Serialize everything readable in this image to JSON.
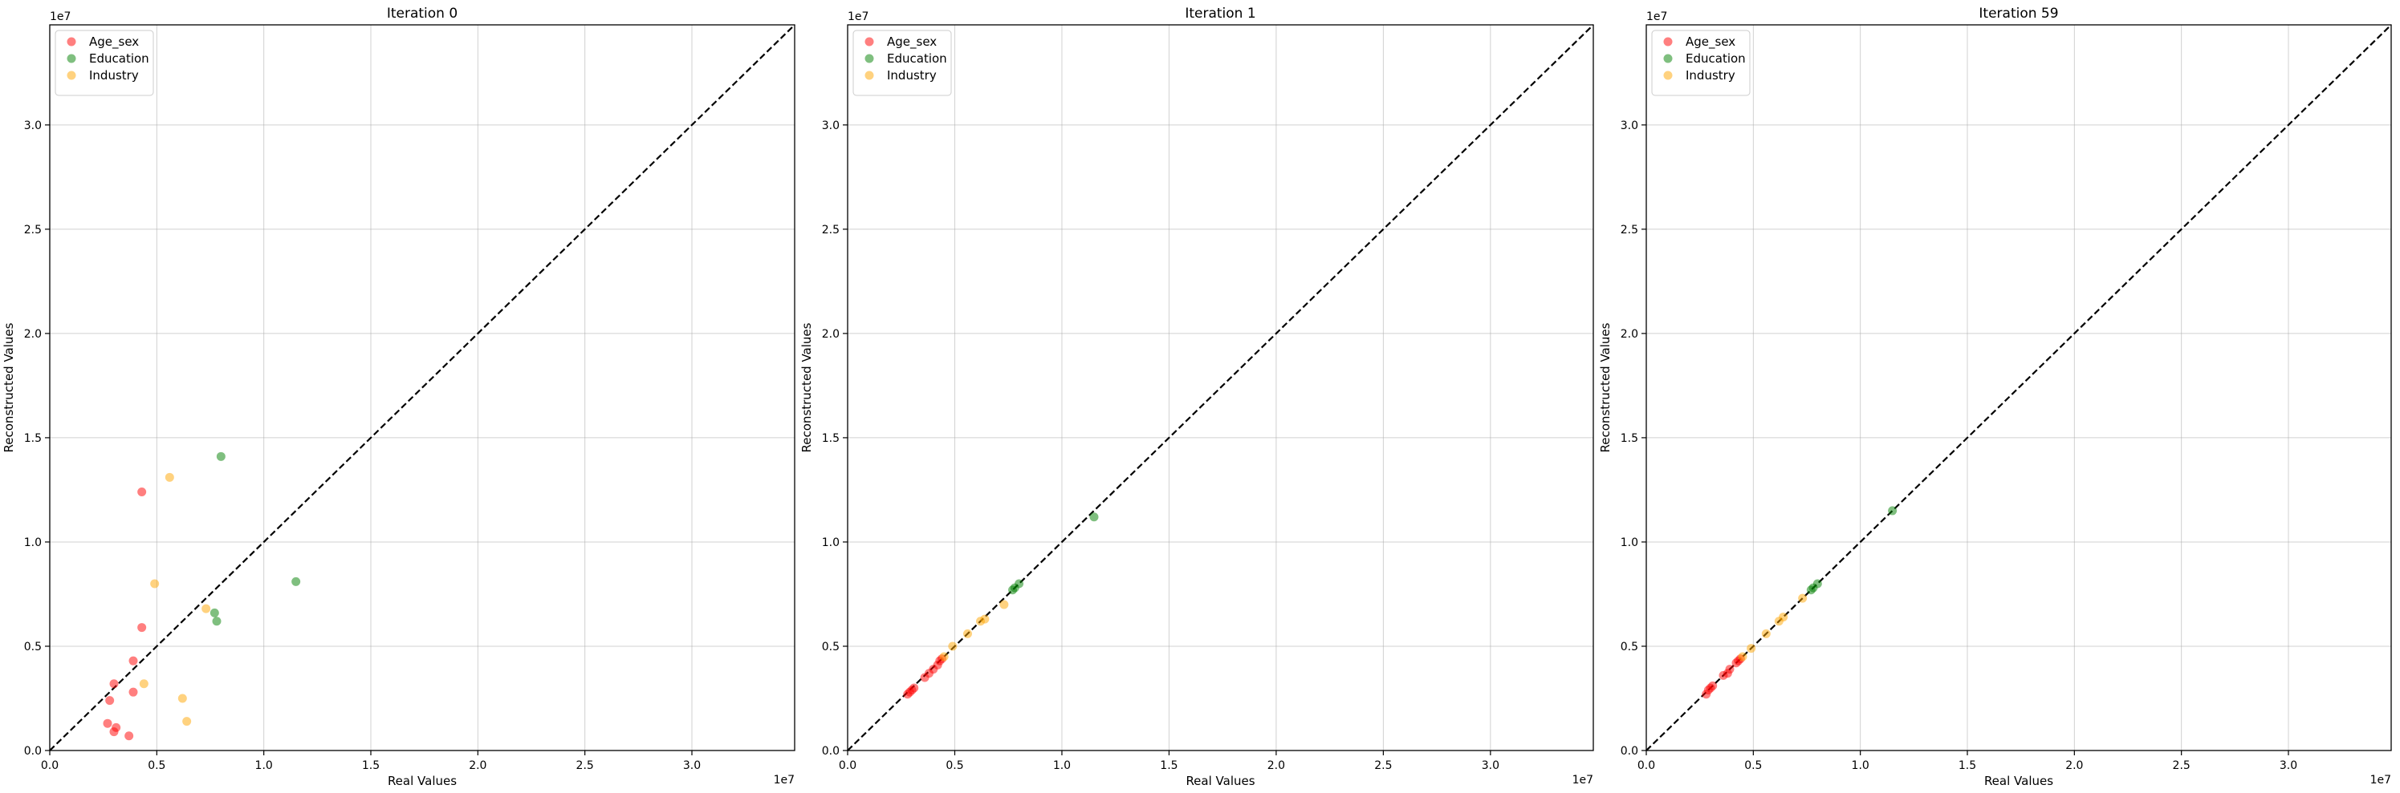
{
  "chart_data": [
    {
      "type": "scatter",
      "title": "Iteration 0",
      "xlabel": "Real Values",
      "ylabel": "Reconstructed Values",
      "x_offset_label": "1e7",
      "y_offset_label": "1e7",
      "xlim": [
        0,
        34800000
      ],
      "ylim": [
        0,
        34800000
      ],
      "x_ticks": [
        0,
        5000000,
        10000000,
        15000000,
        20000000,
        25000000,
        30000000
      ],
      "y_ticks": [
        0,
        5000000,
        10000000,
        15000000,
        20000000,
        25000000,
        30000000
      ],
      "x_tick_labels": [
        "0.0",
        "0.5",
        "1.0",
        "1.5",
        "2.0",
        "2.5",
        "3.0"
      ],
      "y_tick_labels": [
        "0.0",
        "0.5",
        "1.0",
        "1.5",
        "2.0",
        "2.5",
        "3.0"
      ],
      "grid": true,
      "legend_position": "top-left",
      "reference_line": "y = x",
      "series": [
        {
          "name": "Age_sex",
          "color": "#ff0000",
          "points": [
            [
              4300000,
              12400000
            ],
            [
              4300000,
              5900000
            ],
            [
              3900000,
              4300000
            ],
            [
              3000000,
              3200000
            ],
            [
              3900000,
              2800000
            ],
            [
              2800000,
              2400000
            ],
            [
              2700000,
              1300000
            ],
            [
              3100000,
              1100000
            ],
            [
              3000000,
              900000
            ],
            [
              3700000,
              700000
            ]
          ]
        },
        {
          "name": "Education",
          "color": "#008000",
          "points": [
            [
              8000000,
              14100000
            ],
            [
              11500000,
              8100000
            ],
            [
              7700000,
              6600000
            ],
            [
              7800000,
              6200000
            ]
          ]
        },
        {
          "name": "Industry",
          "color": "#ffa500",
          "points": [
            [
              5600000,
              13100000
            ],
            [
              4900000,
              8000000
            ],
            [
              7300000,
              6800000
            ],
            [
              4400000,
              3200000
            ],
            [
              6200000,
              2500000
            ],
            [
              6400000,
              1400000
            ]
          ]
        }
      ]
    },
    {
      "type": "scatter",
      "title": "Iteration 1",
      "xlabel": "Real Values",
      "ylabel": "Reconstructed Values",
      "x_offset_label": "1e7",
      "y_offset_label": "1e7",
      "xlim": [
        0,
        34800000
      ],
      "ylim": [
        0,
        34800000
      ],
      "x_ticks": [
        0,
        5000000,
        10000000,
        15000000,
        20000000,
        25000000,
        30000000
      ],
      "y_ticks": [
        0,
        5000000,
        10000000,
        15000000,
        20000000,
        25000000,
        30000000
      ],
      "x_tick_labels": [
        "0.0",
        "0.5",
        "1.0",
        "1.5",
        "2.0",
        "2.5",
        "3.0"
      ],
      "y_tick_labels": [
        "0.0",
        "0.5",
        "1.0",
        "1.5",
        "2.0",
        "2.5",
        "3.0"
      ],
      "grid": true,
      "legend_position": "top-left",
      "reference_line": "y = x",
      "series": [
        {
          "name": "Age_sex",
          "color": "#ff0000",
          "points": [
            [
              2800000,
              2700000
            ],
            [
              2900000,
              2800000
            ],
            [
              3000000,
              2900000
            ],
            [
              3100000,
              3000000
            ],
            [
              3600000,
              3500000
            ],
            [
              3800000,
              3700000
            ],
            [
              4000000,
              3900000
            ],
            [
              4200000,
              4100000
            ],
            [
              4300000,
              4300000
            ],
            [
              4400000,
              4400000
            ]
          ]
        },
        {
          "name": "Education",
          "color": "#008000",
          "points": [
            [
              11500000,
              11200000
            ],
            [
              7700000,
              7700000
            ],
            [
              7800000,
              7800000
            ],
            [
              8000000,
              8000000
            ]
          ]
        },
        {
          "name": "Industry",
          "color": "#ffa500",
          "points": [
            [
              4500000,
              4500000
            ],
            [
              5600000,
              5600000
            ],
            [
              6200000,
              6200000
            ],
            [
              6400000,
              6300000
            ],
            [
              7300000,
              7000000
            ],
            [
              4900000,
              5000000
            ]
          ]
        }
      ]
    },
    {
      "type": "scatter",
      "title": "Iteration 59",
      "xlabel": "Real Values",
      "ylabel": "Reconstructed Values",
      "x_offset_label": "1e7",
      "y_offset_label": "1e7",
      "xlim": [
        0,
        34800000
      ],
      "ylim": [
        0,
        34800000
      ],
      "x_ticks": [
        0,
        5000000,
        10000000,
        15000000,
        20000000,
        25000000,
        30000000
      ],
      "y_ticks": [
        0,
        5000000,
        10000000,
        15000000,
        20000000,
        25000000,
        30000000
      ],
      "x_tick_labels": [
        "0.0",
        "0.5",
        "1.0",
        "1.5",
        "2.0",
        "2.5",
        "3.0"
      ],
      "y_tick_labels": [
        "0.0",
        "0.5",
        "1.0",
        "1.5",
        "2.0",
        "2.5",
        "3.0"
      ],
      "grid": true,
      "legend_position": "top-left",
      "reference_line": "y = x",
      "series": [
        {
          "name": "Age_sex",
          "color": "#ff0000",
          "points": [
            [
              2800000,
              2700000
            ],
            [
              2900000,
              2900000
            ],
            [
              3000000,
              3000000
            ],
            [
              3100000,
              3100000
            ],
            [
              3600000,
              3600000
            ],
            [
              3900000,
              3900000
            ],
            [
              4200000,
              4200000
            ],
            [
              4300000,
              4300000
            ],
            [
              4400000,
              4400000
            ],
            [
              3800000,
              3700000
            ]
          ]
        },
        {
          "name": "Education",
          "color": "#008000",
          "points": [
            [
              11500000,
              11500000
            ],
            [
              7700000,
              7700000
            ],
            [
              7800000,
              7800000
            ],
            [
              8000000,
              8000000
            ]
          ]
        },
        {
          "name": "Industry",
          "color": "#ffa500",
          "points": [
            [
              4500000,
              4500000
            ],
            [
              5600000,
              5600000
            ],
            [
              6200000,
              6200000
            ],
            [
              6400000,
              6400000
            ],
            [
              7300000,
              7300000
            ],
            [
              4900000,
              4900000
            ]
          ]
        }
      ]
    }
  ]
}
